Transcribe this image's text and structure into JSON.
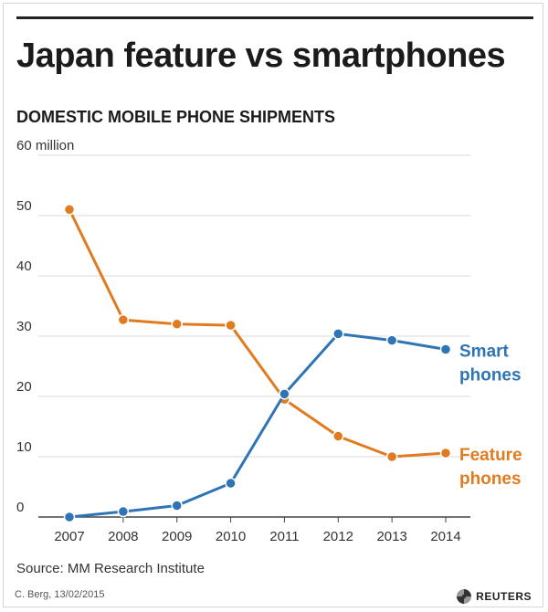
{
  "header": {
    "title": "Japan feature vs smartphones",
    "subtitle": "DOMESTIC MOBILE PHONE SHIPMENTS"
  },
  "footer": {
    "source": "Source: MM Research Institute",
    "date": "C. Berg, 13/02/2015",
    "brand": "REUTERS"
  },
  "colors": {
    "smartphones": "#2f74b5",
    "feature": "#e07b20",
    "grid": "#d9d9d9",
    "axis": "#444444",
    "text": "#333333"
  },
  "chart_data": {
    "type": "line",
    "title": "Japan feature vs smartphones",
    "subtitle": "DOMESTIC MOBILE PHONE SHIPMENTS",
    "xlabel": "",
    "ylabel": "",
    "x": [
      "2007",
      "2008",
      "2009",
      "2010",
      "2011",
      "2012",
      "2013",
      "2014"
    ],
    "ylim": [
      0,
      60
    ],
    "yticks": [
      0,
      10,
      20,
      30,
      40,
      50,
      60
    ],
    "ytick_labels": [
      "0",
      "10",
      "20",
      "30",
      "40",
      "50",
      "60 million"
    ],
    "grid": true,
    "series": [
      {
        "name": "Feature phones",
        "label_lines": [
          "Feature",
          "phones"
        ],
        "color": "#e07b20",
        "values": [
          51.0,
          32.7,
          32.0,
          31.8,
          19.5,
          13.4,
          10.0,
          10.6
        ]
      },
      {
        "name": "Smart phones",
        "label_lines": [
          "Smart",
          "phones"
        ],
        "color": "#2f74b5",
        "values": [
          0.0,
          0.9,
          1.9,
          5.6,
          20.4,
          30.4,
          29.3,
          27.8
        ]
      }
    ]
  }
}
